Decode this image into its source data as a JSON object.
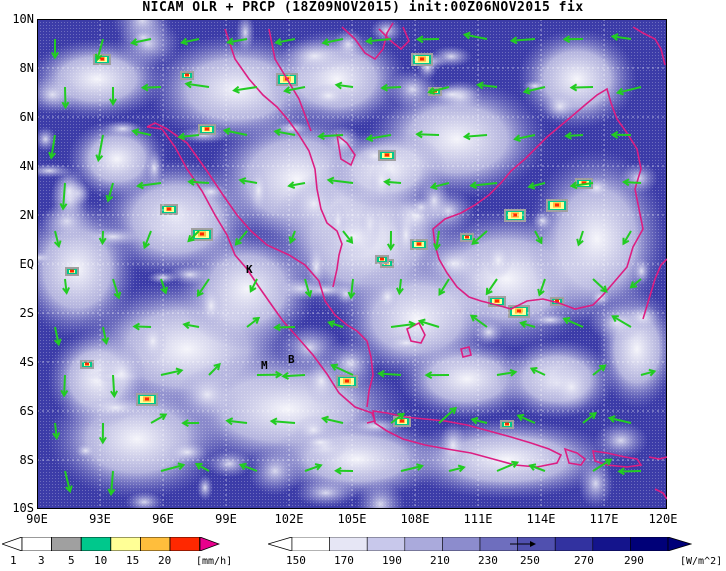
{
  "title": "NICAM OLR + PRCP (18Z09NOV2015) init:00Z06NOV2015 fix",
  "lat_labels": [
    "10N",
    "8N",
    "6N",
    "4N",
    "2N",
    "EQ",
    "2S",
    "4S",
    "6S",
    "8S",
    "10S"
  ],
  "lon_labels": [
    "90E",
    "93E",
    "96E",
    "99E",
    "102E",
    "105E",
    "108E",
    "111E",
    "114E",
    "117E",
    "120E"
  ],
  "city_markers": [
    "K",
    "M",
    "B"
  ],
  "prcp_scale": {
    "unit": "[mm/h]",
    "ticks": [
      "1",
      "3",
      "5",
      "10",
      "15",
      "20"
    ],
    "colors": [
      "#a0a0a0",
      "#00c88c",
      "#ffff96",
      "#ffbe3c",
      "#ff2800",
      "#e8008c"
    ]
  },
  "olr_scale": {
    "unit": "[W/m^2]",
    "ticks": [
      "150",
      "170",
      "190",
      "210",
      "230",
      "250",
      "270",
      "290"
    ],
    "colors": [
      "#ffffff",
      "#e6e6f5",
      "#c8c8eb",
      "#aaaadc",
      "#8c8ccd",
      "#6e6ebe",
      "#5050af",
      "#3232a0",
      "#14148c",
      "#000078"
    ]
  },
  "colors": {
    "coastline": "#dc1e82",
    "wind_arrow": "#22cc22",
    "ocean_base": "#3c3ca8"
  }
}
